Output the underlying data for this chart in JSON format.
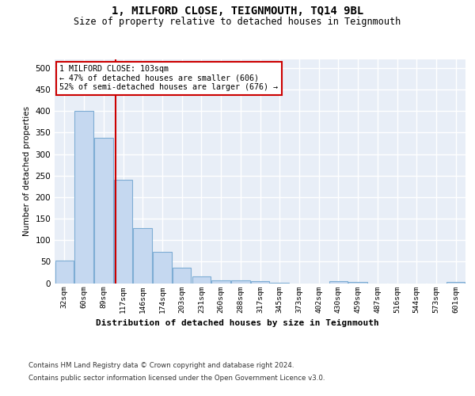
{
  "title": "1, MILFORD CLOSE, TEIGNMOUTH, TQ14 9BL",
  "subtitle": "Size of property relative to detached houses in Teignmouth",
  "xlabel": "Distribution of detached houses by size in Teignmouth",
  "ylabel": "Number of detached properties",
  "footer_line1": "Contains HM Land Registry data © Crown copyright and database right 2024.",
  "footer_line2": "Contains public sector information licensed under the Open Government Licence v3.0.",
  "bin_labels": [
    "32sqm",
    "60sqm",
    "89sqm",
    "117sqm",
    "146sqm",
    "174sqm",
    "203sqm",
    "231sqm",
    "260sqm",
    "288sqm",
    "317sqm",
    "345sqm",
    "373sqm",
    "402sqm",
    "430sqm",
    "459sqm",
    "487sqm",
    "516sqm",
    "544sqm",
    "573sqm",
    "601sqm"
  ],
  "bar_values": [
    52,
    400,
    338,
    240,
    128,
    72,
    35,
    15,
    7,
    6,
    4,
    1,
    0,
    0,
    5,
    3,
    0,
    0,
    0,
    0,
    3
  ],
  "bar_color": "#c5d8f0",
  "bar_edge_color": "#7eadd4",
  "bg_color": "#e8eef7",
  "grid_color": "#ffffff",
  "vline_x": 2.63,
  "vline_color": "#cc0000",
  "annotation_box_text": "1 MILFORD CLOSE: 103sqm\n← 47% of detached houses are smaller (606)\n52% of semi-detached houses are larger (676) →",
  "ylim": [
    0,
    520
  ],
  "yticks": [
    0,
    50,
    100,
    150,
    200,
    250,
    300,
    350,
    400,
    450,
    500
  ]
}
